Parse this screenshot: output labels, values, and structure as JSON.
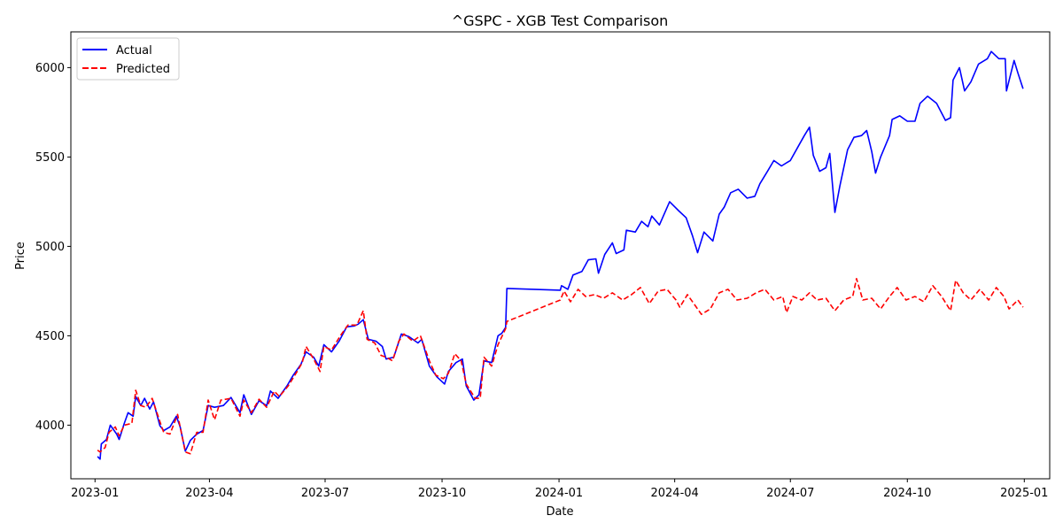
{
  "chart_data": {
    "type": "line",
    "title": "^GSPC - XGB Test Comparison",
    "xlabel": "Date",
    "ylabel": "Price",
    "xlim": [
      "2022-12-13",
      "2025-01-21"
    ],
    "ylim": [
      3700,
      6200
    ],
    "x_ticks": [
      "2023-01",
      "2023-04",
      "2023-07",
      "2023-10",
      "2024-01",
      "2024-04",
      "2024-07",
      "2024-10",
      "2025-01"
    ],
    "y_ticks": [
      4000,
      4500,
      5000,
      5500,
      6000
    ],
    "grid": false,
    "legend_position": "upper-left",
    "series": [
      {
        "name": "Actual",
        "color": "#0000ff",
        "style": "solid",
        "points": [
          [
            "2023-01-03",
            3825
          ],
          [
            "2023-01-05",
            3810
          ],
          [
            "2023-01-06",
            3895
          ],
          [
            "2023-01-10",
            3920
          ],
          [
            "2023-01-13",
            4000
          ],
          [
            "2023-01-18",
            3950
          ],
          [
            "2023-01-20",
            3920
          ],
          [
            "2023-01-24",
            4010
          ],
          [
            "2023-01-27",
            4070
          ],
          [
            "2023-01-31",
            4050
          ],
          [
            "2023-02-02",
            4160
          ],
          [
            "2023-02-06",
            4110
          ],
          [
            "2023-02-09",
            4150
          ],
          [
            "2023-02-13",
            4090
          ],
          [
            "2023-02-16",
            4130
          ],
          [
            "2023-02-21",
            3997
          ],
          [
            "2023-02-24",
            3970
          ],
          [
            "2023-03-01",
            3990
          ],
          [
            "2023-03-06",
            4050
          ],
          [
            "2023-03-09",
            3990
          ],
          [
            "2023-03-13",
            3855
          ],
          [
            "2023-03-17",
            3915
          ],
          [
            "2023-03-22",
            3950
          ],
          [
            "2023-03-27",
            3970
          ],
          [
            "2023-03-31",
            4110
          ],
          [
            "2023-04-05",
            4100
          ],
          [
            "2023-04-12",
            4110
          ],
          [
            "2023-04-18",
            4155
          ],
          [
            "2023-04-25",
            4070
          ],
          [
            "2023-04-28",
            4170
          ],
          [
            "2023-05-04",
            4060
          ],
          [
            "2023-05-10",
            4137
          ],
          [
            "2023-05-16",
            4109
          ],
          [
            "2023-05-19",
            4191
          ],
          [
            "2023-05-25",
            4150
          ],
          [
            "2023-06-01",
            4220
          ],
          [
            "2023-06-06",
            4280
          ],
          [
            "2023-06-12",
            4340
          ],
          [
            "2023-06-16",
            4410
          ],
          [
            "2023-06-22",
            4380
          ],
          [
            "2023-06-26",
            4330
          ],
          [
            "2023-06-30",
            4450
          ],
          [
            "2023-07-06",
            4410
          ],
          [
            "2023-07-12",
            4470
          ],
          [
            "2023-07-18",
            4550
          ],
          [
            "2023-07-24",
            4555
          ],
          [
            "2023-07-27",
            4565
          ],
          [
            "2023-07-31",
            4590
          ],
          [
            "2023-08-04",
            4480
          ],
          [
            "2023-08-10",
            4470
          ],
          [
            "2023-08-15",
            4440
          ],
          [
            "2023-08-18",
            4370
          ],
          [
            "2023-08-24",
            4380
          ],
          [
            "2023-08-30",
            4510
          ],
          [
            "2023-09-05",
            4495
          ],
          [
            "2023-09-12",
            4460
          ],
          [
            "2023-09-15",
            4480
          ],
          [
            "2023-09-21",
            4330
          ],
          [
            "2023-09-27",
            4270
          ],
          [
            "2023-10-03",
            4230
          ],
          [
            "2023-10-06",
            4300
          ],
          [
            "2023-10-12",
            4350
          ],
          [
            "2023-10-17",
            4370
          ],
          [
            "2023-10-20",
            4220
          ],
          [
            "2023-10-26",
            4140
          ],
          [
            "2023-10-30",
            4170
          ],
          [
            "2023-11-03",
            4360
          ],
          [
            "2023-11-09",
            4350
          ],
          [
            "2023-11-14",
            4500
          ],
          [
            "2023-11-17",
            4514
          ],
          [
            "2023-11-20",
            4547
          ],
          [
            "2023-11-21",
            4765
          ],
          [
            "2024-01-02",
            4755
          ],
          [
            "2024-01-03",
            4780
          ],
          [
            "2024-01-08",
            4760
          ],
          [
            "2024-01-12",
            4840
          ],
          [
            "2024-01-19",
            4860
          ],
          [
            "2024-01-24",
            4925
          ],
          [
            "2024-01-30",
            4930
          ],
          [
            "2024-02-01",
            4850
          ],
          [
            "2024-02-06",
            4955
          ],
          [
            "2024-02-12",
            5020
          ],
          [
            "2024-02-15",
            4960
          ],
          [
            "2024-02-21",
            4980
          ],
          [
            "2024-02-23",
            5090
          ],
          [
            "2024-03-01",
            5080
          ],
          [
            "2024-03-06",
            5140
          ],
          [
            "2024-03-11",
            5110
          ],
          [
            "2024-03-14",
            5170
          ],
          [
            "2024-03-20",
            5120
          ],
          [
            "2024-03-28",
            5250
          ],
          [
            "2024-04-04",
            5200
          ],
          [
            "2024-04-10",
            5160
          ],
          [
            "2024-04-15",
            5060
          ],
          [
            "2024-04-19",
            4965
          ],
          [
            "2024-04-24",
            5080
          ],
          [
            "2024-05-01",
            5030
          ],
          [
            "2024-05-06",
            5180
          ],
          [
            "2024-05-10",
            5220
          ],
          [
            "2024-05-15",
            5300
          ],
          [
            "2024-05-21",
            5320
          ],
          [
            "2024-05-28",
            5270
          ],
          [
            "2024-06-03",
            5280
          ],
          [
            "2024-06-07",
            5350
          ],
          [
            "2024-06-13",
            5420
          ],
          [
            "2024-06-18",
            5480
          ],
          [
            "2024-06-24",
            5450
          ],
          [
            "2024-07-01",
            5480
          ],
          [
            "2024-07-08",
            5570
          ],
          [
            "2024-07-12",
            5620
          ],
          [
            "2024-07-16",
            5667
          ],
          [
            "2024-07-19",
            5510
          ],
          [
            "2024-07-24",
            5420
          ],
          [
            "2024-07-29",
            5440
          ],
          [
            "2024-08-01",
            5520
          ],
          [
            "2024-08-05",
            5190
          ],
          [
            "2024-08-09",
            5340
          ],
          [
            "2024-08-15",
            5540
          ],
          [
            "2024-08-20",
            5610
          ],
          [
            "2024-08-26",
            5620
          ],
          [
            "2024-08-30",
            5648
          ],
          [
            "2024-09-03",
            5530
          ],
          [
            "2024-09-06",
            5410
          ],
          [
            "2024-09-10",
            5500
          ],
          [
            "2024-09-17",
            5620
          ],
          [
            "2024-09-19",
            5710
          ],
          [
            "2024-09-25",
            5730
          ],
          [
            "2024-10-01",
            5700
          ],
          [
            "2024-10-07",
            5700
          ],
          [
            "2024-10-11",
            5800
          ],
          [
            "2024-10-17",
            5840
          ],
          [
            "2024-10-24",
            5800
          ],
          [
            "2024-10-31",
            5705
          ],
          [
            "2024-11-04",
            5720
          ],
          [
            "2024-11-06",
            5930
          ],
          [
            "2024-11-11",
            6000
          ],
          [
            "2024-11-15",
            5870
          ],
          [
            "2024-11-20",
            5920
          ],
          [
            "2024-11-26",
            6020
          ],
          [
            "2024-12-03",
            6050
          ],
          [
            "2024-12-06",
            6090
          ],
          [
            "2024-12-12",
            6050
          ],
          [
            "2024-12-17",
            6050
          ],
          [
            "2024-12-18",
            5870
          ],
          [
            "2024-12-24",
            6040
          ],
          [
            "2024-12-27",
            5970
          ],
          [
            "2024-12-31",
            5882
          ]
        ]
      },
      {
        "name": "Predicted",
        "color": "#ff0000",
        "style": "dashed",
        "points": [
          [
            "2023-01-03",
            3860
          ],
          [
            "2023-01-05",
            3850
          ],
          [
            "2023-01-09",
            3875
          ],
          [
            "2023-01-12",
            3960
          ],
          [
            "2023-01-17",
            3990
          ],
          [
            "2023-01-20",
            3940
          ],
          [
            "2023-01-24",
            4000
          ],
          [
            "2023-01-30",
            4010
          ],
          [
            "2023-02-02",
            4195
          ],
          [
            "2023-02-06",
            4110
          ],
          [
            "2023-02-10",
            4100
          ],
          [
            "2023-02-15",
            4150
          ],
          [
            "2023-02-21",
            4020
          ],
          [
            "2023-02-24",
            3960
          ],
          [
            "2023-03-01",
            3950
          ],
          [
            "2023-03-07",
            4060
          ],
          [
            "2023-03-13",
            3850
          ],
          [
            "2023-03-17",
            3840
          ],
          [
            "2023-03-22",
            3960
          ],
          [
            "2023-03-27",
            3960
          ],
          [
            "2023-03-31",
            4140
          ],
          [
            "2023-04-05",
            4030
          ],
          [
            "2023-04-10",
            4140
          ],
          [
            "2023-04-18",
            4150
          ],
          [
            "2023-04-25",
            4050
          ],
          [
            "2023-04-28",
            4140
          ],
          [
            "2023-05-04",
            4070
          ],
          [
            "2023-05-10",
            4145
          ],
          [
            "2023-05-16",
            4100
          ],
          [
            "2023-05-22",
            4190
          ],
          [
            "2023-05-26",
            4160
          ],
          [
            "2023-06-02",
            4220
          ],
          [
            "2023-06-09",
            4300
          ],
          [
            "2023-06-13",
            4350
          ],
          [
            "2023-06-16",
            4440
          ],
          [
            "2023-06-22",
            4370
          ],
          [
            "2023-06-27",
            4300
          ],
          [
            "2023-06-30",
            4440
          ],
          [
            "2023-07-06",
            4420
          ],
          [
            "2023-07-13",
            4500
          ],
          [
            "2023-07-19",
            4560
          ],
          [
            "2023-07-26",
            4560
          ],
          [
            "2023-07-31",
            4640
          ],
          [
            "2023-08-03",
            4480
          ],
          [
            "2023-08-09",
            4460
          ],
          [
            "2023-08-14",
            4390
          ],
          [
            "2023-08-18",
            4380
          ],
          [
            "2023-08-23",
            4360
          ],
          [
            "2023-08-28",
            4470
          ],
          [
            "2023-09-01",
            4510
          ],
          [
            "2023-09-08",
            4470
          ],
          [
            "2023-09-14",
            4500
          ],
          [
            "2023-09-21",
            4360
          ],
          [
            "2023-09-26",
            4280
          ],
          [
            "2023-10-02",
            4260
          ],
          [
            "2023-10-06",
            4290
          ],
          [
            "2023-10-11",
            4400
          ],
          [
            "2023-10-16",
            4360
          ],
          [
            "2023-10-20",
            4230
          ],
          [
            "2023-10-27",
            4150
          ],
          [
            "2023-10-31",
            4150
          ],
          [
            "2023-11-03",
            4380
          ],
          [
            "2023-11-09",
            4330
          ],
          [
            "2023-11-14",
            4450
          ],
          [
            "2023-11-20",
            4540
          ],
          [
            "2023-11-21",
            4580
          ],
          [
            "2024-01-02",
            4700
          ],
          [
            "2024-01-05",
            4750
          ],
          [
            "2024-01-10",
            4690
          ],
          [
            "2024-01-16",
            4760
          ],
          [
            "2024-01-22",
            4720
          ],
          [
            "2024-01-29",
            4730
          ],
          [
            "2024-02-05",
            4710
          ],
          [
            "2024-02-12",
            4740
          ],
          [
            "2024-02-20",
            4700
          ],
          [
            "2024-02-27",
            4730
          ],
          [
            "2024-03-05",
            4770
          ],
          [
            "2024-03-12",
            4680
          ],
          [
            "2024-03-19",
            4750
          ],
          [
            "2024-03-26",
            4760
          ],
          [
            "2024-04-02",
            4700
          ],
          [
            "2024-04-05",
            4660
          ],
          [
            "2024-04-11",
            4730
          ],
          [
            "2024-04-16",
            4680
          ],
          [
            "2024-04-22",
            4620
          ],
          [
            "2024-04-29",
            4650
          ],
          [
            "2024-05-06",
            4740
          ],
          [
            "2024-05-13",
            4760
          ],
          [
            "2024-05-20",
            4700
          ],
          [
            "2024-05-28",
            4710
          ],
          [
            "2024-06-04",
            4740
          ],
          [
            "2024-06-11",
            4760
          ],
          [
            "2024-06-18",
            4700
          ],
          [
            "2024-06-25",
            4720
          ],
          [
            "2024-06-28",
            4630
          ],
          [
            "2024-07-03",
            4720
          ],
          [
            "2024-07-10",
            4700
          ],
          [
            "2024-07-16",
            4740
          ],
          [
            "2024-07-22",
            4700
          ],
          [
            "2024-07-29",
            4710
          ],
          [
            "2024-08-05",
            4640
          ],
          [
            "2024-08-12",
            4700
          ],
          [
            "2024-08-19",
            4720
          ],
          [
            "2024-08-22",
            4820
          ],
          [
            "2024-08-27",
            4700
          ],
          [
            "2024-09-03",
            4710
          ],
          [
            "2024-09-10",
            4650
          ],
          [
            "2024-09-17",
            4720
          ],
          [
            "2024-09-23",
            4770
          ],
          [
            "2024-09-30",
            4700
          ],
          [
            "2024-10-07",
            4720
          ],
          [
            "2024-10-14",
            4690
          ],
          [
            "2024-10-21",
            4780
          ],
          [
            "2024-10-28",
            4720
          ],
          [
            "2024-11-04",
            4640
          ],
          [
            "2024-11-08",
            4810
          ],
          [
            "2024-11-14",
            4740
          ],
          [
            "2024-11-20",
            4700
          ],
          [
            "2024-11-27",
            4760
          ],
          [
            "2024-12-04",
            4700
          ],
          [
            "2024-12-10",
            4770
          ],
          [
            "2024-12-16",
            4720
          ],
          [
            "2024-12-20",
            4650
          ],
          [
            "2024-12-27",
            4700
          ],
          [
            "2024-12-31",
            4660
          ]
        ]
      }
    ]
  }
}
